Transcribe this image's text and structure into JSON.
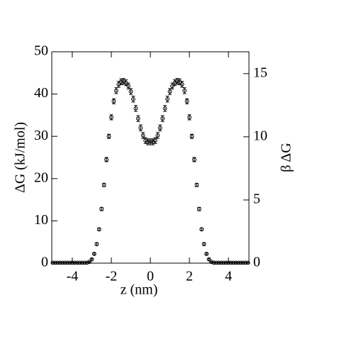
{
  "chart_data": {
    "type": "scatter",
    "xlabel": "z (nm)",
    "ylabel": "ΔG (kJ/mol)",
    "y2label": "β ΔG",
    "xlim": [
      -5.05,
      5.05
    ],
    "xticks": [
      -4,
      -2,
      0,
      2,
      4
    ],
    "ylim": [
      0,
      50
    ],
    "yticks": [
      0,
      10,
      20,
      30,
      40,
      50
    ],
    "y2lim": [
      0,
      16.73
    ],
    "y2ticks": [
      0,
      5,
      10,
      15
    ],
    "series": [
      {
        "color": "#000000",
        "x": [
          -5,
          -4.875,
          -4.75,
          -4.625,
          -4.5,
          -4.375,
          -4.25,
          -4.125,
          -4,
          -3.875,
          -3.75,
          -3.625,
          -3.5,
          -3.375,
          -3.25,
          -3.125,
          -3,
          -2.875,
          -2.75,
          -2.625,
          -2.5,
          -2.375,
          -2.25,
          -2.125,
          -2,
          -1.875,
          -1.75,
          -1.625,
          -1.5,
          -1.375,
          -1.25,
          -1.125,
          -1,
          -0.875,
          -0.75,
          -0.625,
          -0.5,
          -0.375,
          -0.25,
          -0.125,
          0,
          0.125,
          0.25,
          0.375,
          0.5,
          0.625,
          0.75,
          0.875,
          1,
          1.125,
          1.25,
          1.375,
          1.5,
          1.625,
          1.75,
          1.875,
          2,
          2.125,
          2.25,
          2.375,
          2.5,
          2.625,
          2.75,
          2.875,
          3,
          3.125,
          3.25,
          3.375,
          3.5,
          3.625,
          3.75,
          3.875,
          4,
          4.125,
          4.25,
          4.375,
          4.5,
          4.625,
          4.75,
          4.875,
          5
        ],
        "values": [
          0.1,
          0.1,
          0.1,
          0.1,
          0.1,
          0.1,
          0.1,
          0.1,
          0.1,
          0.1,
          0.1,
          0.1,
          0.1,
          0.1,
          0.1,
          0.3,
          0.9,
          2.2,
          4.5,
          8.0,
          12.8,
          18.5,
          24.5,
          30.0,
          34.5,
          38.3,
          40.8,
          42.3,
          42.9,
          43.0,
          42.7,
          41.9,
          40.6,
          38.8,
          36.6,
          34.2,
          32.0,
          30.2,
          29.0,
          28.7,
          28.7,
          28.7,
          29.0,
          30.2,
          32.0,
          34.2,
          36.6,
          38.8,
          40.6,
          41.9,
          42.7,
          43.0,
          42.9,
          42.3,
          40.8,
          38.3,
          34.5,
          30.0,
          24.5,
          18.5,
          12.8,
          8.0,
          4.5,
          2.2,
          0.9,
          0.3,
          0.1,
          0.1,
          0.1,
          0.1,
          0.1,
          0.1,
          0.1,
          0.1,
          0.1,
          0.1,
          0.1,
          0.1,
          0.1,
          0.1,
          0.1
        ],
        "errors": [
          0.1,
          0.1,
          0.1,
          0.1,
          0.1,
          0.1,
          0.1,
          0.1,
          0.1,
          0.1,
          0.1,
          0.1,
          0.1,
          0.1,
          0.1,
          0.1,
          0.2,
          0.2,
          0.3,
          0.3,
          0.4,
          0.4,
          0.5,
          0.5,
          0.6,
          0.6,
          0.7,
          0.7,
          0.7,
          0.7,
          0.7,
          0.7,
          0.7,
          0.7,
          0.7,
          0.7,
          0.7,
          0.7,
          0.7,
          0.7,
          0.7,
          0.7,
          0.7,
          0.7,
          0.7,
          0.7,
          0.7,
          0.7,
          0.7,
          0.7,
          0.7,
          0.7,
          0.7,
          0.7,
          0.7,
          0.6,
          0.6,
          0.5,
          0.5,
          0.4,
          0.4,
          0.3,
          0.3,
          0.2,
          0.2,
          0.1,
          0.1,
          0.1,
          0.1,
          0.1,
          0.1,
          0.1,
          0.1,
          0.1,
          0.1,
          0.1,
          0.1,
          0.1,
          0.1,
          0.1,
          0.1
        ]
      }
    ]
  }
}
